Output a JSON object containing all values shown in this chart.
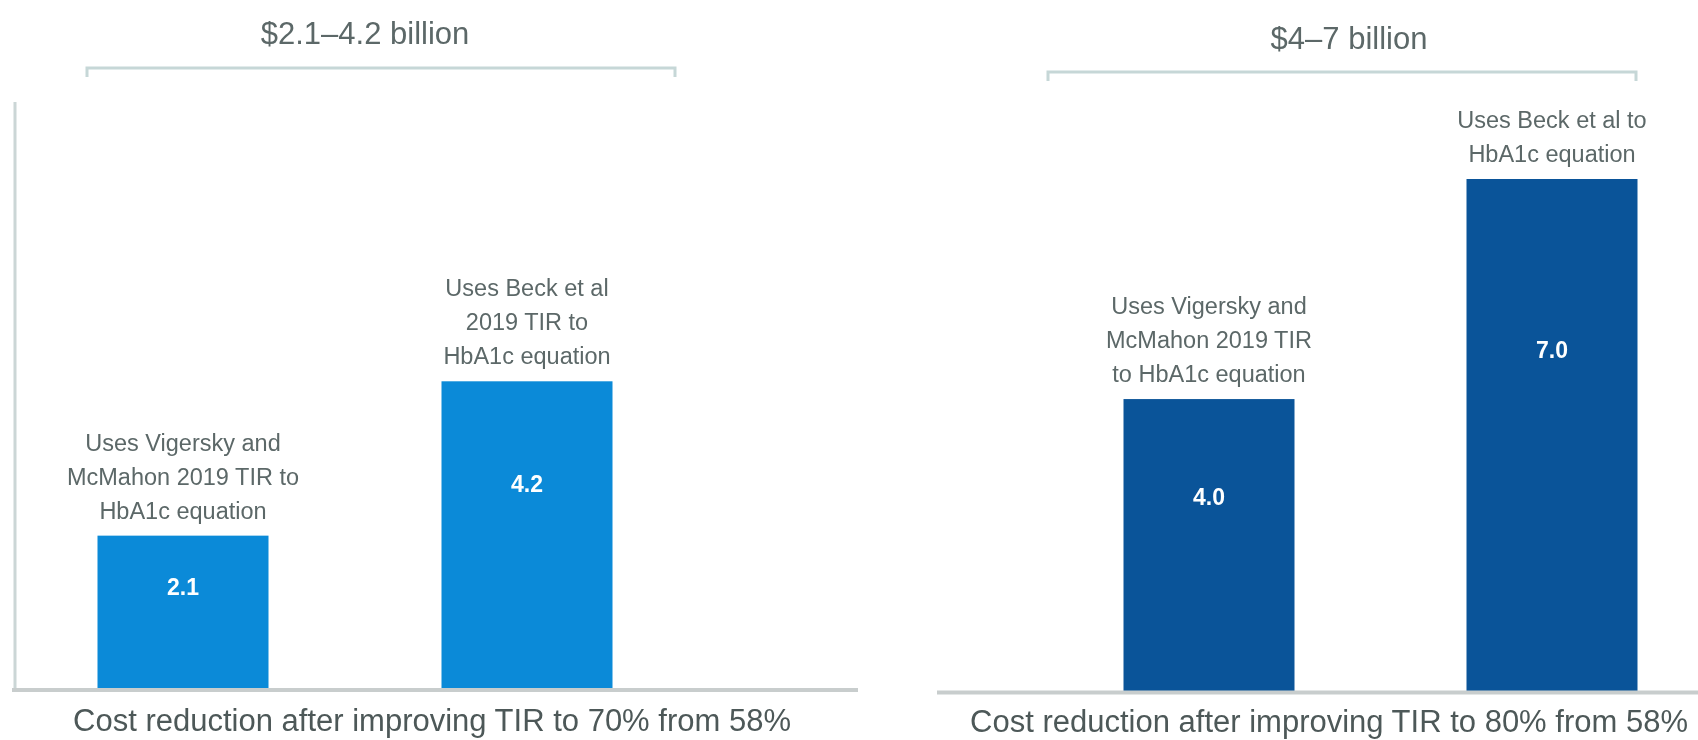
{
  "chart_data": [
    {
      "type": "bar",
      "title": "$2.1–4.2 billion",
      "xlabel": "Cost reduction after improving TIR to 70% from 58%",
      "categories": [
        null,
        null
      ],
      "values": [
        2.1,
        4.2
      ],
      "color": "#0b8ad8",
      "ylim": [
        0,
        8
      ],
      "data_labels": true,
      "tick_labels": false,
      "annotations": [
        {
          "text": "Uses Vigersky and\nMcMahon 2019 TIR to\nHbA1c equation",
          "y": 2.1
        },
        {
          "text": "Uses Beck et al\n2019 TIR to\nHbA1c equation",
          "y": 4.2
        }
      ]
    },
    {
      "type": "bar",
      "title": "$4–7 billion",
      "xlabel": "Cost reduction after improving TIR to 80% from 58%",
      "categories": [
        null,
        null
      ],
      "values": [
        4.0,
        7.0
      ],
      "value_labels": [
        "4.0",
        "7.0"
      ],
      "color": "#0a5499",
      "tick_labels": false,
      "annotations": [
        {
          "text": "Uses Vigersky and\nMcMahon 2019 TIR\nto HbA1c equation",
          "y": 4.0
        },
        {
          "text": "Uses Beck et al to\nHbA1c equation",
          "y": 7.0
        }
      ]
    }
  ]
}
